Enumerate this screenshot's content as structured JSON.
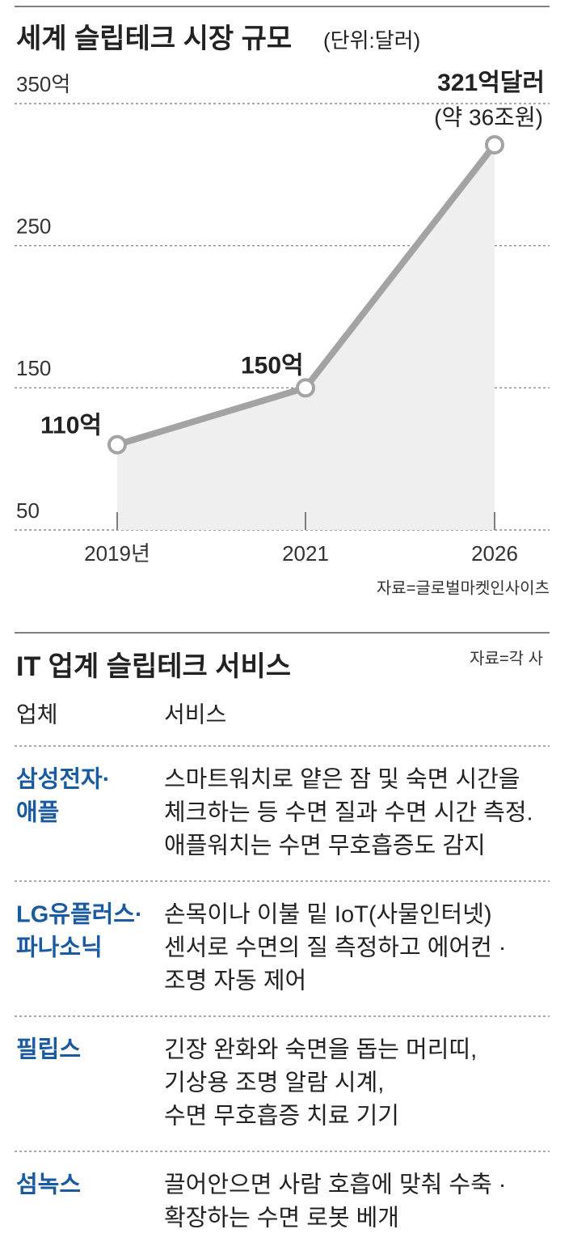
{
  "chart_data": {
    "type": "line",
    "title": "세계 슬립테크 시장 규모",
    "subtitle": "(단위:달러)",
    "categories": [
      "2019년",
      "2021",
      "2026"
    ],
    "values": [
      110,
      150,
      321
    ],
    "value_labels": [
      "110억",
      "150억",
      "321억달러"
    ],
    "annotation": "(약 36조원)",
    "color": "#a3a3a3",
    "area_color": "#efefef",
    "ylim": [
      50,
      350
    ],
    "yticks": [
      50,
      150,
      250,
      {
        "value": 350,
        "label": "350억"
      }
    ],
    "grid": true,
    "source": "자료=글로벌마켓인사이츠"
  },
  "table": {
    "title": "IT 업계 슬립테크 서비스",
    "source": "자료=각 사",
    "headers": [
      "업체",
      "서비스"
    ],
    "rows": [
      {
        "company": [
          "삼성전자·",
          "애플"
        ],
        "service": [
          "스마트워치로 얕은 잠 및 숙면 시간을",
          "체크하는 등 수면 질과 수면 시간 측정.",
          "애플워치는 수면 무호흡증도 감지"
        ]
      },
      {
        "company": [
          "LG유플러스·",
          "파나소닉"
        ],
        "service": [
          "손목이나 이불 밑 IoT(사물인터넷)",
          "센서로  수면의 질 측정하고 에어컨 ·",
          "조명 자동 제어"
        ]
      },
      {
        "company": [
          "필립스"
        ],
        "service": [
          "긴장 완화와 숙면을 돕는 머리띠,",
          "기상용 조명 알람 시계,",
          "수면 무호흡증 치료 기기"
        ]
      },
      {
        "company": [
          "섬녹스"
        ],
        "service": [
          "끌어안으면 사람 호흡에 맞춰 수축 ·",
          "확장하는 수면 로봇 베개"
        ]
      }
    ]
  }
}
